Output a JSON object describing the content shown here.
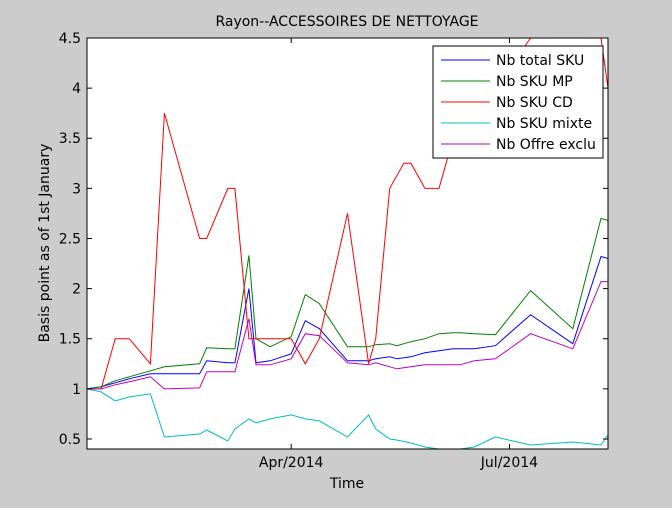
{
  "chart_data": {
    "type": "line",
    "title": "Rayon--ACCESSOIRES DE NETTOYAGE",
    "xlabel": "Time",
    "ylabel": "Basis point as of 1st January",
    "ylim": [
      0.4,
      4.5
    ],
    "xlim": [
      0,
      74
    ],
    "xticks": [
      {
        "x": 29,
        "label": "Apr/2014"
      },
      {
        "x": 60,
        "label": "Jul/2014"
      }
    ],
    "yticks": [
      {
        "y": 0.5,
        "label": "0.5"
      },
      {
        "y": 1,
        "label": "1"
      },
      {
        "y": 1.5,
        "label": "1.5"
      },
      {
        "y": 2,
        "label": "2"
      },
      {
        "y": 2.5,
        "label": "2.5"
      },
      {
        "y": 3,
        "label": "3"
      },
      {
        "y": 3.5,
        "label": "3.5"
      },
      {
        "y": 4,
        "label": "4"
      },
      {
        "y": 4.5,
        "label": "4.5"
      }
    ],
    "grid": false,
    "legend_position": "top-right",
    "series": [
      {
        "name": "Nb total SKU",
        "color": "#0000ff",
        "x": [
          0,
          2,
          4,
          6,
          9,
          11,
          16,
          17,
          20,
          21,
          23,
          24,
          26,
          29,
          31,
          33,
          37,
          40,
          41,
          43,
          44,
          46,
          48,
          50,
          52,
          53,
          55,
          58,
          63,
          69,
          73,
          74
        ],
        "y": [
          1.0,
          1.02,
          1.06,
          1.1,
          1.15,
          1.15,
          1.15,
          1.28,
          1.26,
          1.26,
          2.0,
          1.26,
          1.28,
          1.35,
          1.68,
          1.6,
          1.28,
          1.28,
          1.3,
          1.32,
          1.3,
          1.32,
          1.36,
          1.38,
          1.4,
          1.4,
          1.4,
          1.43,
          1.74,
          1.45,
          2.32,
          2.3
        ]
      },
      {
        "name": "Nb SKU MP",
        "color": "#008000",
        "x": [
          0,
          2,
          4,
          6,
          9,
          11,
          16,
          17,
          20,
          21,
          23,
          24,
          26,
          29,
          31,
          33,
          37,
          40,
          41,
          43,
          44,
          46,
          48,
          50,
          52,
          53,
          55,
          58,
          63,
          69,
          73,
          74
        ],
        "y": [
          1.0,
          1.02,
          1.08,
          1.12,
          1.18,
          1.22,
          1.25,
          1.41,
          1.4,
          1.4,
          2.33,
          1.5,
          1.42,
          1.52,
          1.94,
          1.85,
          1.42,
          1.42,
          1.44,
          1.45,
          1.43,
          1.47,
          1.5,
          1.55,
          1.56,
          1.56,
          1.55,
          1.54,
          1.98,
          1.6,
          2.7,
          2.68
        ]
      },
      {
        "name": "Nb SKU CD",
        "color": "#ff0000",
        "x": [
          0,
          1,
          2,
          4,
          6,
          9,
          11,
          16,
          17,
          20,
          21,
          23,
          24,
          29,
          31,
          33,
          37,
          40,
          41,
          43,
          45,
          46,
          48,
          50,
          52,
          55,
          58,
          63,
          73,
          74
        ],
        "y": [
          1.0,
          1.0,
          1.0,
          1.5,
          1.5,
          1.25,
          3.75,
          2.5,
          2.5,
          3.0,
          3.0,
          1.5,
          1.5,
          1.5,
          1.25,
          1.5,
          2.75,
          1.25,
          1.5,
          3.0,
          3.25,
          3.25,
          3.0,
          3.0,
          3.5,
          3.75,
          4.0,
          4.5,
          4.5,
          4.0
        ]
      },
      {
        "name": "Nb SKU mixte",
        "color": "#00bfbf",
        "x": [
          0,
          2,
          4,
          6,
          9,
          11,
          16,
          17,
          20,
          21,
          23,
          24,
          26,
          29,
          31,
          33,
          37,
          40,
          41,
          43,
          44,
          46,
          48,
          50,
          52,
          53,
          55,
          58,
          63,
          69,
          73,
          74
        ],
        "y": [
          1.0,
          0.97,
          0.88,
          0.92,
          0.95,
          0.52,
          0.55,
          0.59,
          0.48,
          0.6,
          0.7,
          0.66,
          0.7,
          0.74,
          0.7,
          0.68,
          0.52,
          0.74,
          0.6,
          0.5,
          0.49,
          0.46,
          0.42,
          0.4,
          0.4,
          0.4,
          0.42,
          0.52,
          0.44,
          0.47,
          0.44,
          0.54
        ]
      },
      {
        "name": "Nb Offre exclu",
        "color": "#bf00bf",
        "x": [
          0,
          2,
          4,
          6,
          9,
          11,
          16,
          17,
          20,
          21,
          23,
          24,
          26,
          29,
          31,
          33,
          37,
          40,
          41,
          43,
          44,
          46,
          48,
          50,
          52,
          53,
          55,
          58,
          63,
          69,
          73,
          74
        ],
        "y": [
          1.0,
          1.0,
          1.04,
          1.07,
          1.12,
          1.0,
          1.01,
          1.17,
          1.17,
          1.17,
          1.7,
          1.24,
          1.24,
          1.3,
          1.55,
          1.53,
          1.26,
          1.24,
          1.26,
          1.22,
          1.2,
          1.22,
          1.24,
          1.24,
          1.24,
          1.24,
          1.28,
          1.3,
          1.55,
          1.4,
          2.07,
          2.07
        ]
      }
    ]
  }
}
